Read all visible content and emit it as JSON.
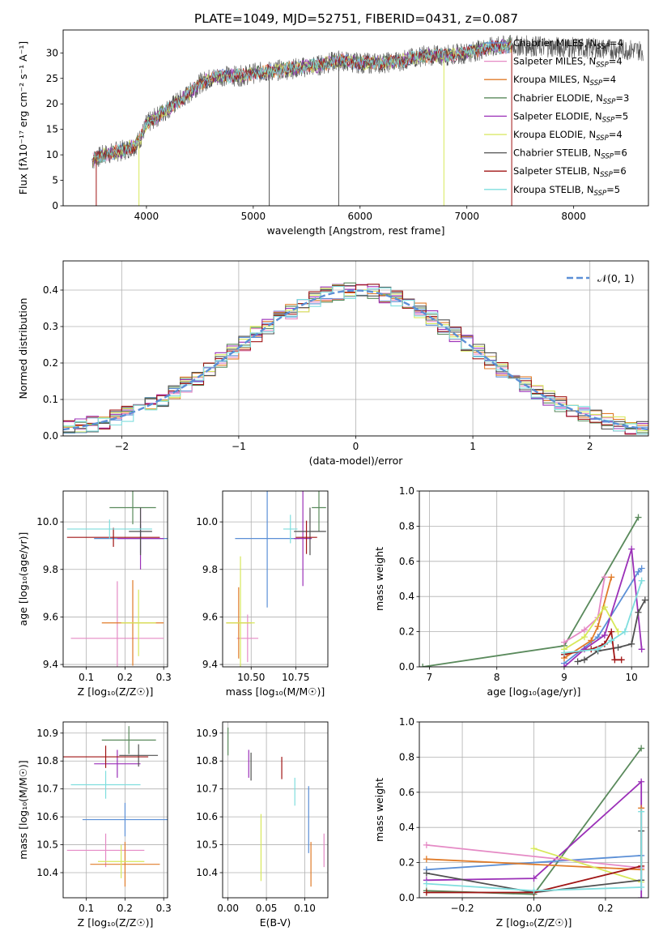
{
  "figure_title": "PLATE=1049, MJD=52751, FIBERID=0431, z=0.087",
  "colors": {
    "Chabrier MILES": "#5b8fd6",
    "Salpeter MILES": "#e58ac5",
    "Kroupa MILES": "#e07b29",
    "Chabrier ELODIE": "#5a8a5c",
    "Salpeter ELODIE": "#9b30b8",
    "Kroupa ELODIE": "#d7e85a",
    "Chabrier STELIB": "#505050",
    "Salpeter STELIB": "#a01515",
    "Kroupa STELIB": "#7fdede"
  },
  "chart_data": [
    {
      "id": "spectrum",
      "type": "line",
      "title": "PLATE=1049, MJD=52751, FIBERID=0431, z=0.087",
      "xlabel": "wavelength [Angstrom, rest frame]",
      "ylabel": "Flux [fλ10⁻¹⁷ erg cm⁻² s⁻¹ A⁻¹]",
      "xlim": [
        3220,
        8700
      ],
      "ylim": [
        0,
        34.5
      ],
      "xticks": [
        "4000",
        "5000",
        "6000",
        "7000",
        "8000"
      ],
      "yticks": [
        "0",
        "5",
        "10",
        "15",
        "20",
        "25",
        "30"
      ],
      "grid": false,
      "legend_position": "top-right",
      "legend": [
        {
          "label": "Chabrier MILES, N",
          "sub": "SSP",
          "suffix": "=4",
          "key": "Chabrier MILES"
        },
        {
          "label": "Salpeter MILES, N",
          "sub": "SSP",
          "suffix": "=4",
          "key": "Salpeter MILES"
        },
        {
          "label": "Kroupa MILES, N",
          "sub": "SSP",
          "suffix": "=4",
          "key": "Kroupa MILES"
        },
        {
          "label": "Chabrier ELODIE, N",
          "sub": "SSP",
          "suffix": "=3",
          "key": "Chabrier ELODIE"
        },
        {
          "label": "Salpeter ELODIE, N",
          "sub": "SSP",
          "suffix": "=5",
          "key": "Salpeter ELODIE"
        },
        {
          "label": "Kroupa ELODIE, N",
          "sub": "SSP",
          "suffix": "=4",
          "key": "Kroupa ELODIE"
        },
        {
          "label": "Chabrier STELIB, N",
          "sub": "SSP",
          "suffix": "=6",
          "key": "Chabrier STELIB"
        },
        {
          "label": "Salpeter STELIB, N",
          "sub": "SSP",
          "suffix": "=6",
          "key": "Salpeter STELIB"
        },
        {
          "label": "Kroupa STELIB, N",
          "sub": "SSP",
          "suffix": "=5",
          "key": "Kroupa STELIB"
        }
      ],
      "continuum_x": [
        3500,
        3600,
        3700,
        3800,
        3900,
        3950,
        4000,
        4100,
        4200,
        4300,
        4400,
        4500,
        4600,
        4700,
        4800,
        4900,
        5000,
        5200,
        5400,
        5600,
        5800,
        6000,
        6200,
        6400,
        6600,
        6800,
        7000,
        7200,
        7400
      ],
      "continuum_y": [
        9,
        10,
        10.5,
        11,
        12,
        13.5,
        16,
        17.5,
        19,
        20.5,
        22,
        24,
        25,
        25.5,
        25.5,
        25.5,
        26,
        26.5,
        27,
        27.5,
        28.5,
        28,
        28,
        28.5,
        29.5,
        29.5,
        30,
        31,
        31.5
      ],
      "data_range": [
        3490,
        8650
      ],
      "model_range": [
        3500,
        7420
      ]
    },
    {
      "id": "residuals",
      "type": "histogram",
      "xlabel": "(data-model)/error",
      "ylabel": "Normed distribution",
      "xlim": [
        -2.5,
        2.5
      ],
      "ylim": [
        0,
        0.48
      ],
      "xticks": [
        "−2",
        "−1",
        "0",
        "1",
        "2"
      ],
      "yticks": [
        "0.0",
        "0.1",
        "0.2",
        "0.3",
        "0.4"
      ],
      "grid": true,
      "bin_width": 0.1,
      "legend_position": "top-right",
      "reference": {
        "label": "𝒩(0, 1)",
        "mean": 0,
        "sigma": 1
      }
    },
    {
      "id": "age_vs_Z",
      "type": "errorbar",
      "xlabel": "Z [log₁₀(Z/Z☉)]",
      "ylabel": "age  [log₁₀(age/yr)]",
      "xlim": [
        0.04,
        0.31
      ],
      "ylim": [
        9.39,
        10.13
      ],
      "xticks": [
        "0.1",
        "0.2",
        "0.3"
      ],
      "yticks": [
        "9.4",
        "9.6",
        "9.8",
        "10.0"
      ],
      "grid": true,
      "points": [
        {
          "key": "Chabrier MILES",
          "x": 0.24,
          "xerr": 0.12,
          "y": 9.93,
          "yerr": 0.06
        },
        {
          "key": "Salpeter MILES",
          "x": 0.18,
          "xerr": 0.12,
          "y": 9.51,
          "yerr": 0.24
        },
        {
          "key": "Kroupa MILES",
          "x": 0.22,
          "xerr": 0.08,
          "y": 9.575,
          "yerr": 0.18
        },
        {
          "key": "Chabrier ELODIE",
          "x": 0.22,
          "xerr": 0.06,
          "y": 10.06,
          "yerr": 0.07
        },
        {
          "key": "Salpeter ELODIE",
          "x": 0.24,
          "xerr": 0.06,
          "y": 9.93,
          "yerr": 0.13
        },
        {
          "key": "Kroupa ELODIE",
          "x": 0.235,
          "xerr": 0.045,
          "y": 9.575,
          "yerr": 0.14
        },
        {
          "key": "Chabrier STELIB",
          "x": 0.24,
          "xerr": 0.03,
          "y": 9.96,
          "yerr": 0.1
        },
        {
          "key": "Salpeter STELIB",
          "x": 0.17,
          "xerr": 0.12,
          "y": 9.935,
          "yerr": 0.04
        },
        {
          "key": "Kroupa STELIB",
          "x": 0.16,
          "xerr": 0.11,
          "y": 9.97,
          "yerr": 0.04
        }
      ]
    },
    {
      "id": "age_vs_mass",
      "type": "errorbar",
      "xlabel": "mass [log₁₀(M/M☉)]",
      "ylabel": "",
      "xlim": [
        10.34,
        10.93
      ],
      "ylim": [
        9.39,
        10.13
      ],
      "xticks": [
        "10.50",
        "10.75"
      ],
      "yticks": [
        "9.4",
        "9.6",
        "9.8",
        "10.0"
      ],
      "grid": true,
      "points": [
        {
          "key": "Chabrier MILES",
          "x": 10.59,
          "xerr": 0.18,
          "y": 9.93,
          "yerr": 0.29
        },
        {
          "key": "Salpeter MILES",
          "x": 10.48,
          "xerr": 0.06,
          "y": 9.51,
          "yerr": 0.1
        },
        {
          "key": "Kroupa MILES",
          "x": 10.43,
          "xerr": 0.07,
          "y": 9.575,
          "yerr": 0.15
        },
        {
          "key": "Chabrier ELODIE",
          "x": 10.88,
          "xerr": 0.04,
          "y": 10.06,
          "yerr": 0.1
        },
        {
          "key": "Salpeter ELODIE",
          "x": 10.79,
          "xerr": 0.05,
          "y": 9.93,
          "yerr": 0.2
        },
        {
          "key": "Kroupa ELODIE",
          "x": 10.44,
          "xerr": 0.08,
          "y": 9.575,
          "yerr": 0.28
        },
        {
          "key": "Chabrier STELIB",
          "x": 10.83,
          "xerr": 0.09,
          "y": 9.96,
          "yerr": 0.1
        },
        {
          "key": "Salpeter STELIB",
          "x": 10.81,
          "xerr": 0.06,
          "y": 9.935,
          "yerr": 0.07
        },
        {
          "key": "Kroupa STELIB",
          "x": 10.72,
          "xerr": 0.04,
          "y": 9.97,
          "yerr": 0.06
        }
      ]
    },
    {
      "id": "weight_vs_age",
      "type": "line",
      "xlabel": "age  [log₁₀(age/yr)]",
      "ylabel": "mass weight",
      "xlim": [
        6.85,
        10.25
      ],
      "ylim": [
        0,
        1.0
      ],
      "xticks": [
        "7",
        "8",
        "9",
        "10"
      ],
      "yticks": [
        "0.0",
        "0.2",
        "0.4",
        "0.6",
        "0.8",
        "1.0"
      ],
      "grid": true,
      "series": [
        {
          "key": "Chabrier ELODIE",
          "x": [
            6.9,
            9.0,
            10.1
          ],
          "y": [
            0.0,
            0.12,
            0.85
          ]
        },
        {
          "key": "Chabrier MILES",
          "x": [
            9.0,
            9.5,
            10.1,
            10.15
          ],
          "y": [
            0.02,
            0.17,
            0.54,
            0.56
          ]
        },
        {
          "key": "Salpeter MILES",
          "x": [
            9.0,
            9.3,
            9.5,
            9.6
          ],
          "y": [
            0.14,
            0.21,
            0.28,
            0.51
          ]
        },
        {
          "key": "Kroupa MILES",
          "x": [
            9.0,
            9.4,
            9.5,
            9.7
          ],
          "y": [
            0.05,
            0.15,
            0.23,
            0.51
          ]
        },
        {
          "key": "Salpeter ELODIE",
          "x": [
            9.0,
            9.3,
            9.6,
            10.0,
            10.15
          ],
          "y": [
            0.0,
            0.1,
            0.18,
            0.67,
            0.1
          ]
        },
        {
          "key": "Kroupa ELODIE",
          "x": [
            9.0,
            9.3,
            9.6,
            9.8
          ],
          "y": [
            0.1,
            0.17,
            0.34,
            0.2
          ]
        },
        {
          "key": "Chabrier STELIB",
          "x": [
            9.2,
            9.3,
            9.5,
            9.8,
            10.0,
            10.1,
            10.2
          ],
          "y": [
            0.03,
            0.04,
            0.09,
            0.11,
            0.13,
            0.31,
            0.38
          ]
        },
        {
          "key": "Salpeter STELIB",
          "x": [
            9.0,
            9.4,
            9.6,
            9.7,
            9.75,
            9.85
          ],
          "y": [
            0.07,
            0.1,
            0.13,
            0.2,
            0.04,
            0.04
          ]
        },
        {
          "key": "Kroupa STELIB",
          "x": [
            9.0,
            9.5,
            9.7,
            9.9,
            10.15
          ],
          "y": [
            0.08,
            0.1,
            0.15,
            0.2,
            0.49
          ]
        }
      ]
    },
    {
      "id": "mass_vs_Z",
      "type": "errorbar",
      "xlabel": "Z [log₁₀(Z/Z☉)]",
      "ylabel": "mass [log₁₀(M/M☉)]",
      "xlim": [
        0.04,
        0.31
      ],
      "ylim": [
        10.31,
        10.94
      ],
      "xticks": [
        "0.1",
        "0.2",
        "0.3"
      ],
      "yticks": [
        "10.4",
        "10.5",
        "10.6",
        "10.7",
        "10.8",
        "10.9"
      ],
      "grid": true,
      "points": [
        {
          "key": "Chabrier MILES",
          "x": 0.2,
          "xerr": 0.11,
          "y": 10.59,
          "yerr": 0.06
        },
        {
          "key": "Salpeter MILES",
          "x": 0.15,
          "xerr": 0.1,
          "y": 10.48,
          "yerr": 0.06
        },
        {
          "key": "Kroupa MILES",
          "x": 0.2,
          "xerr": 0.09,
          "y": 10.43,
          "yerr": 0.08
        },
        {
          "key": "Chabrier ELODIE",
          "x": 0.21,
          "xerr": 0.07,
          "y": 10.875,
          "yerr": 0.05
        },
        {
          "key": "Salpeter ELODIE",
          "x": 0.18,
          "xerr": 0.06,
          "y": 10.79,
          "yerr": 0.05
        },
        {
          "key": "Kroupa ELODIE",
          "x": 0.19,
          "xerr": 0.06,
          "y": 10.44,
          "yerr": 0.06
        },
        {
          "key": "Chabrier STELIB",
          "x": 0.235,
          "xerr": 0.05,
          "y": 10.82,
          "yerr": 0.04
        },
        {
          "key": "Salpeter STELIB",
          "x": 0.15,
          "xerr": 0.11,
          "y": 10.815,
          "yerr": 0.04
        },
        {
          "key": "Kroupa STELIB",
          "x": 0.15,
          "xerr": 0.09,
          "y": 10.715,
          "yerr": 0.05
        }
      ]
    },
    {
      "id": "mass_vs_EBV",
      "type": "errorbar",
      "xlabel": "E(B-V)",
      "ylabel": "",
      "xlim": [
        -0.007,
        0.13
      ],
      "ylim": [
        10.31,
        10.94
      ],
      "xticks": [
        "0.00",
        "0.05",
        "0.10"
      ],
      "yticks": [
        "10.4",
        "10.5",
        "10.6",
        "10.7",
        "10.8",
        "10.9"
      ],
      "grid": true,
      "points": [
        {
          "key": "Chabrier MILES",
          "x": 0.105,
          "xerr": 0,
          "y": 10.59,
          "yerr": 0.12
        },
        {
          "key": "Salpeter MILES",
          "x": 0.125,
          "xerr": 0,
          "y": 10.48,
          "yerr": 0.06
        },
        {
          "key": "Kroupa MILES",
          "x": 0.108,
          "xerr": 0,
          "y": 10.43,
          "yerr": 0.08
        },
        {
          "key": "Chabrier ELODIE",
          "x": 0.0,
          "xerr": 0,
          "y": 10.87,
          "yerr": 0.05
        },
        {
          "key": "Salpeter ELODIE",
          "x": 0.027,
          "xerr": 0,
          "y": 10.79,
          "yerr": 0.05
        },
        {
          "key": "Kroupa ELODIE",
          "x": 0.043,
          "xerr": 0,
          "y": 10.49,
          "yerr": 0.12
        },
        {
          "key": "Chabrier STELIB",
          "x": 0.03,
          "xerr": 0,
          "y": 10.78,
          "yerr": 0.05
        },
        {
          "key": "Salpeter STELIB",
          "x": 0.07,
          "xerr": 0,
          "y": 10.775,
          "yerr": 0.04
        },
        {
          "key": "Kroupa STELIB",
          "x": 0.087,
          "xerr": 0,
          "y": 10.69,
          "yerr": 0.05
        }
      ]
    },
    {
      "id": "weight_vs_Z",
      "type": "line",
      "xlabel": "Z [log₁₀(Z/Z☉)]",
      "ylabel": "mass weight",
      "xlim": [
        -0.32,
        0.32
      ],
      "ylim": [
        0,
        1.0
      ],
      "xticks": [
        "−0.2",
        "0.0",
        "0.2"
      ],
      "yticks": [
        "0.0",
        "0.2",
        "0.4",
        "0.6",
        "0.8",
        "1.0"
      ],
      "grid": true,
      "series": [
        {
          "key": "Chabrier ELODIE",
          "x": [
            -0.3,
            0.0,
            0.3
          ],
          "y": [
            0.04,
            0.02,
            0.85
          ]
        },
        {
          "key": "Salpeter ELODIE",
          "x": [
            -0.3,
            0.0,
            0.3,
            0.3
          ],
          "y": [
            0.1,
            0.11,
            0.66,
            0.0
          ]
        },
        {
          "key": "Chabrier MILES",
          "x": [
            -0.3,
            0.3
          ],
          "y": [
            0.16,
            0.24
          ]
        },
        {
          "key": "Salpeter MILES",
          "x": [
            -0.3,
            0.3
          ],
          "y": [
            0.3,
            0.17
          ]
        },
        {
          "key": "Kroupa MILES",
          "x": [
            -0.3,
            0.3,
            0.3
          ],
          "y": [
            0.22,
            0.16,
            0.51
          ]
        },
        {
          "key": "Kroupa ELODIE",
          "x": [
            0.0,
            0.3
          ],
          "y": [
            0.28,
            0.09
          ]
        },
        {
          "key": "Chabrier STELIB",
          "x": [
            -0.3,
            0.0,
            0.3,
            0.3
          ],
          "y": [
            0.14,
            0.03,
            0.1,
            0.38
          ]
        },
        {
          "key": "Salpeter STELIB",
          "x": [
            -0.3,
            0.0,
            0.3
          ],
          "y": [
            0.03,
            0.03,
            0.18
          ]
        },
        {
          "key": "Kroupa STELIB",
          "x": [
            -0.3,
            0.0,
            0.3,
            0.3
          ],
          "y": [
            0.08,
            0.04,
            0.06,
            0.49
          ]
        }
      ]
    }
  ]
}
